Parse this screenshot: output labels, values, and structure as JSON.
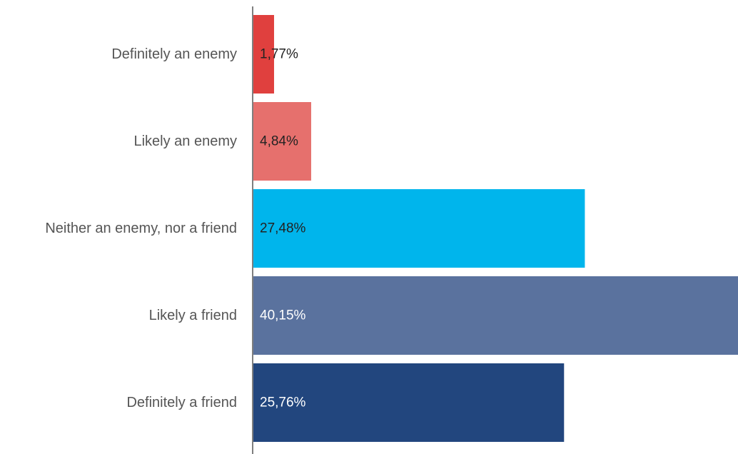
{
  "chart_data": {
    "type": "bar",
    "orientation": "horizontal",
    "categories": [
      "Definitely an enemy",
      "Likely an enemy",
      "Neither an enemy, nor a friend",
      "Likely a friend",
      "Definitely a friend"
    ],
    "values": [
      1.77,
      4.84,
      27.48,
      40.15,
      25.76
    ],
    "value_labels": [
      "1,77%",
      "4,84%",
      "27,48%",
      "40,15%",
      "25,76%"
    ],
    "colors": [
      "#e0403e",
      "#e6706d",
      "#00b5ec",
      "#5a729e",
      "#22467e"
    ],
    "label_colors": [
      "#222222",
      "#222222",
      "#222222",
      "#ffffff",
      "#ffffff"
    ],
    "axis_color": "#7f7f7f",
    "title": "",
    "xlabel": "",
    "ylabel": "",
    "xlim": [
      0,
      40.15
    ],
    "grid": false,
    "legend": "none"
  }
}
